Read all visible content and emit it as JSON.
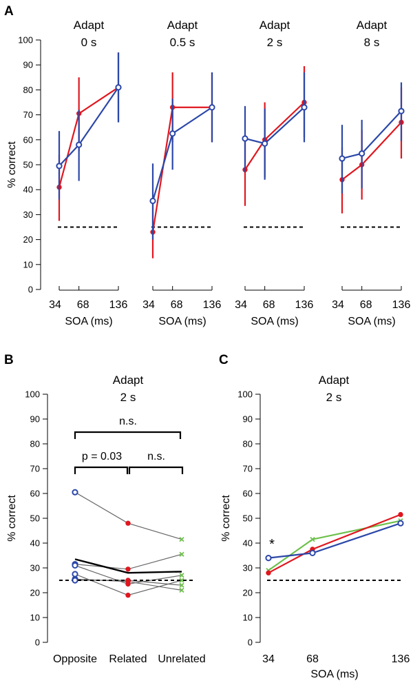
{
  "panels": {
    "a": "A",
    "b": "B",
    "c": "C"
  },
  "colors": {
    "red": "#e0161e",
    "blue": "#2b47a8",
    "green": "#6cc04a",
    "gray": "#666666",
    "black": "#000000"
  },
  "chart_data": [
    {
      "id": "A1",
      "type": "line",
      "title": [
        "Adapt",
        "0 s"
      ],
      "xlabel": "SOA (ms)",
      "ylabel": "% correct",
      "ylim": [
        0,
        100
      ],
      "yticks": [
        0,
        10,
        20,
        30,
        40,
        50,
        60,
        70,
        80,
        90,
        100
      ],
      "x": [
        34,
        68,
        136
      ],
      "xtick_labels": [
        "34",
        "68",
        "136"
      ],
      "chance": 25,
      "series": [
        {
          "name": "red",
          "color": "#e0161e",
          "marker": "dot",
          "values": [
            41,
            70.5,
            81
          ],
          "err_low": [
            27.5,
            55.5,
            67
          ],
          "err_high": [
            54,
            85,
            95
          ]
        },
        {
          "name": "blue",
          "color": "#2b47a8",
          "marker": "circle",
          "values": [
            49.5,
            58,
            81
          ],
          "err_low": [
            36,
            43.5,
            67
          ],
          "err_high": [
            63.5,
            72,
            95
          ]
        }
      ]
    },
    {
      "id": "A2",
      "type": "line",
      "title": [
        "Adapt",
        "0.5 s"
      ],
      "xlabel": "SOA (ms)",
      "ylim": [
        0,
        100
      ],
      "x": [
        34,
        68,
        136
      ],
      "xtick_labels": [
        "34",
        "68",
        "136"
      ],
      "chance": 25,
      "series": [
        {
          "name": "red",
          "color": "#e0161e",
          "marker": "dot",
          "values": [
            23,
            73,
            73
          ],
          "err_low": [
            12.5,
            59,
            59
          ],
          "err_high": [
            35,
            87,
            87
          ]
        },
        {
          "name": "blue",
          "color": "#2b47a8",
          "marker": "circle",
          "values": [
            35.5,
            62.5,
            73
          ],
          "err_low": [
            20,
            48,
            59
          ],
          "err_high": [
            50.5,
            76.5,
            87
          ]
        }
      ]
    },
    {
      "id": "A3",
      "type": "line",
      "title": [
        "Adapt",
        "2 s"
      ],
      "xlabel": "SOA (ms)",
      "ylim": [
        0,
        100
      ],
      "x": [
        34,
        68,
        136
      ],
      "xtick_labels": [
        "34",
        "68",
        "136"
      ],
      "chance": 25,
      "series": [
        {
          "name": "red",
          "color": "#e0161e",
          "marker": "dot",
          "values": [
            48,
            60,
            75
          ],
          "err_low": [
            33.5,
            45,
            61
          ],
          "err_high": [
            62,
            75,
            89.5
          ]
        },
        {
          "name": "blue",
          "color": "#2b47a8",
          "marker": "circle",
          "values": [
            60.5,
            58.5,
            73
          ],
          "err_low": [
            47,
            44,
            59
          ],
          "err_high": [
            73.5,
            72.5,
            87
          ]
        }
      ]
    },
    {
      "id": "A4",
      "type": "line",
      "title": [
        "Adapt",
        "8 s"
      ],
      "xlabel": "SOA (ms)",
      "ylim": [
        0,
        100
      ],
      "x": [
        34,
        68,
        136
      ],
      "xtick_labels": [
        "34",
        "68",
        "136"
      ],
      "chance": 25,
      "series": [
        {
          "name": "red",
          "color": "#e0161e",
          "marker": "dot",
          "values": [
            44,
            50,
            67
          ],
          "err_low": [
            30.5,
            36,
            52.5
          ],
          "err_high": [
            57,
            64,
            81
          ]
        },
        {
          "name": "blue",
          "color": "#2b47a8",
          "marker": "circle",
          "values": [
            52.5,
            54.5,
            71.5
          ],
          "err_low": [
            38.5,
            40.5,
            59.5
          ],
          "err_high": [
            66,
            68,
            83
          ]
        }
      ]
    },
    {
      "id": "B",
      "type": "line",
      "title": [
        "Adapt",
        "2 s"
      ],
      "ylabel": "% correct",
      "ylim": [
        0,
        100
      ],
      "yticks": [
        0,
        10,
        20,
        30,
        40,
        50,
        60,
        70,
        80,
        90,
        100
      ],
      "categories": [
        "Opposite",
        "Related",
        "Unrelated"
      ],
      "chance": 25,
      "subjects": [
        {
          "values": [
            60.5,
            48,
            41.5
          ]
        },
        {
          "values": [
            31.5,
            29.5,
            35.5
          ]
        },
        {
          "values": [
            31,
            23.5,
            27
          ]
        },
        {
          "values": [
            27.5,
            19,
            25
          ]
        },
        {
          "values": [
            25.5,
            24.5,
            21
          ]
        },
        {
          "values": [
            25,
            25,
            23
          ]
        }
      ],
      "mean": [
        33.5,
        28,
        28.5
      ],
      "markers": {
        "Opposite": "blue circle",
        "Related": "red dot",
        "Unrelated": "green x"
      },
      "annotations": {
        "p_value": "p = 0.03",
        "ns_right": "n.s.",
        "ns_top": "n.s."
      }
    },
    {
      "id": "C",
      "type": "line",
      "title": [
        "Adapt",
        "2 s"
      ],
      "xlabel": "SOA (ms)",
      "ylabel": "% correct",
      "ylim": [
        0,
        100
      ],
      "yticks": [
        0,
        10,
        20,
        30,
        40,
        50,
        60,
        70,
        80,
        90,
        100
      ],
      "x": [
        34,
        68,
        136
      ],
      "xtick_labels": [
        "34",
        "68",
        "136"
      ],
      "chance": 25,
      "series": [
        {
          "name": "green",
          "color": "#6cc04a",
          "marker": "x",
          "values": [
            29,
            41.5,
            49
          ]
        },
        {
          "name": "red",
          "color": "#e0161e",
          "marker": "dot",
          "values": [
            28,
            37.5,
            51.5
          ]
        },
        {
          "name": "blue",
          "color": "#2b47a8",
          "marker": "circle",
          "values": [
            34,
            36,
            48
          ]
        }
      ],
      "annotation": "*"
    }
  ]
}
